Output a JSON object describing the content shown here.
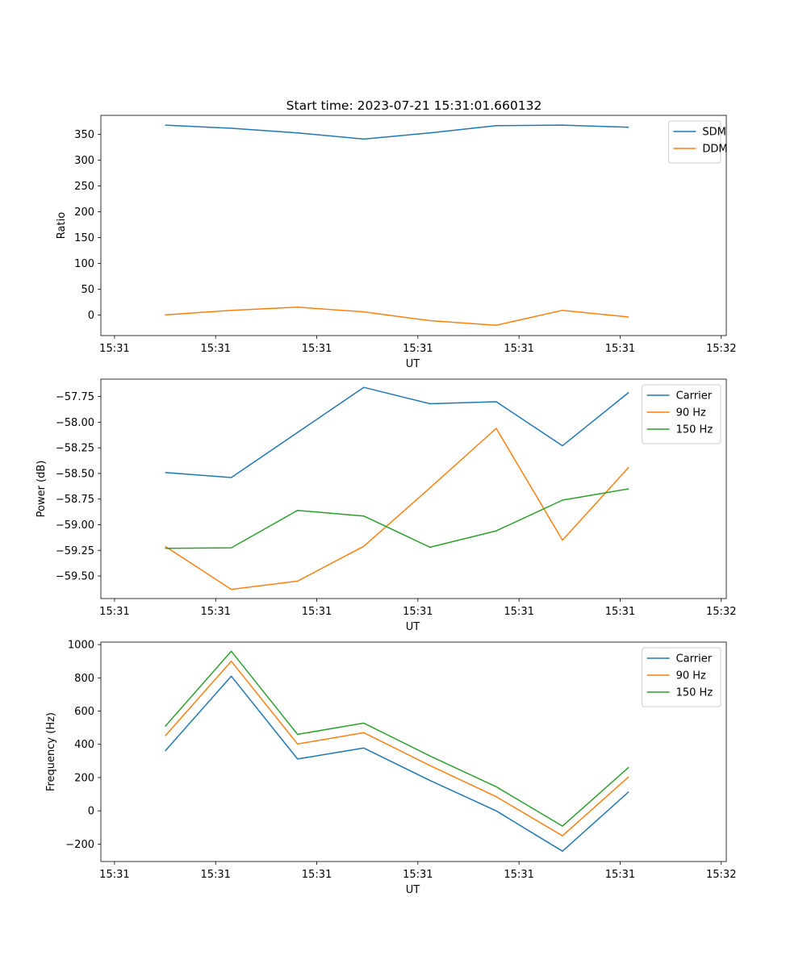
{
  "title": "Start time: 2023-07-21 15:31:01.660132",
  "colors": {
    "blue": "#1f77b4",
    "orange": "#ff7f0e",
    "green": "#2ca02c"
  },
  "x_ticks": [
    "15:31",
    "15:31",
    "15:31",
    "15:31",
    "15:31",
    "15:31",
    "15:32"
  ],
  "chart_data": [
    {
      "type": "line",
      "id": "ratio",
      "title": "Start time: 2023-07-21 15:31:01.660132",
      "xlabel": "UT",
      "ylabel": "Ratio",
      "xlim": [
        -0.135,
        6.05
      ],
      "ylim": [
        -40,
        387
      ],
      "x_tick_positions": [
        0,
        1,
        2,
        3,
        4,
        5,
        6
      ],
      "x_tick_labels": [
        "15:31",
        "15:31",
        "15:31",
        "15:31",
        "15:31",
        "15:31",
        "15:32"
      ],
      "y_ticks": [
        0,
        50,
        100,
        150,
        200,
        250,
        300,
        350
      ],
      "y_tick_labels": [
        "0",
        "50",
        "100",
        "150",
        "200",
        "250",
        "300",
        "350"
      ],
      "x": [
        0.5,
        1.155,
        1.81,
        2.465,
        3.12,
        3.775,
        4.43,
        5.085
      ],
      "series": [
        {
          "name": "SDM",
          "color": "#1f77b4",
          "values": [
            368,
            362,
            353,
            341,
            353,
            367,
            368,
            364
          ]
        },
        {
          "name": "DDM",
          "color": "#ff7f0e",
          "values": [
            0,
            9,
            15,
            6,
            -11,
            -20,
            9,
            -4
          ]
        }
      ],
      "legend": "top-right"
    },
    {
      "type": "line",
      "id": "power",
      "xlabel": "UT",
      "ylabel": "Power (dB)",
      "xlim": [
        -0.135,
        6.05
      ],
      "ylim": [
        -59.72,
        -57.58
      ],
      "x_tick_positions": [
        0,
        1,
        2,
        3,
        4,
        5,
        6
      ],
      "x_tick_labels": [
        "15:31",
        "15:31",
        "15:31",
        "15:31",
        "15:31",
        "15:31",
        "15:32"
      ],
      "y_ticks": [
        -59.5,
        -59.25,
        -59.0,
        -58.75,
        -58.5,
        -58.25,
        -58.0,
        -57.75
      ],
      "y_tick_labels": [
        "−59.50",
        "−59.25",
        "−59.00",
        "−58.75",
        "−58.50",
        "−58.25",
        "−58.00",
        "−57.75"
      ],
      "x": [
        0.5,
        1.155,
        1.81,
        2.465,
        3.12,
        3.775,
        4.43,
        5.085
      ],
      "series": [
        {
          "name": "Carrier",
          "color": "#1f77b4",
          "values": [
            -58.49,
            -58.54,
            -58.1,
            -57.66,
            -57.82,
            -57.8,
            -58.23,
            -57.71
          ]
        },
        {
          "name": "90 Hz",
          "color": "#ff7f0e",
          "values": [
            -59.21,
            -59.63,
            -59.55,
            -59.21,
            -58.64,
            -58.06,
            -59.15,
            -58.44
          ]
        },
        {
          "name": "150 Hz",
          "color": "#2ca02c",
          "values": [
            -59.23,
            -59.225,
            -58.86,
            -58.915,
            -59.22,
            -59.06,
            -58.76,
            -58.65
          ]
        }
      ],
      "legend": "top-right"
    },
    {
      "type": "line",
      "id": "frequency",
      "xlabel": "UT",
      "ylabel": "Frequency (Hz)",
      "xlim": [
        -0.135,
        6.05
      ],
      "ylim": [
        -305,
        1015
      ],
      "x_tick_positions": [
        0,
        1,
        2,
        3,
        4,
        5,
        6
      ],
      "x_tick_labels": [
        "15:31",
        "15:31",
        "15:31",
        "15:31",
        "15:31",
        "15:31",
        "15:32"
      ],
      "y_ticks": [
        -200,
        0,
        200,
        400,
        600,
        800,
        1000
      ],
      "y_tick_labels": [
        "−200",
        "0",
        "200",
        "400",
        "600",
        "800",
        "1000"
      ],
      "x": [
        0.5,
        1.155,
        1.81,
        2.465,
        3.12,
        3.775,
        4.43,
        5.085
      ],
      "series": [
        {
          "name": "Carrier",
          "color": "#1f77b4",
          "values": [
            360,
            810,
            312,
            378,
            182,
            0,
            -243,
            115
          ]
        },
        {
          "name": "90 Hz",
          "color": "#ff7f0e",
          "values": [
            450,
            900,
            402,
            470,
            272,
            85,
            -150,
            205
          ]
        },
        {
          "name": "150 Hz",
          "color": "#2ca02c",
          "values": [
            508,
            960,
            460,
            528,
            330,
            145,
            -92,
            262
          ]
        }
      ],
      "legend": "top-right"
    }
  ]
}
